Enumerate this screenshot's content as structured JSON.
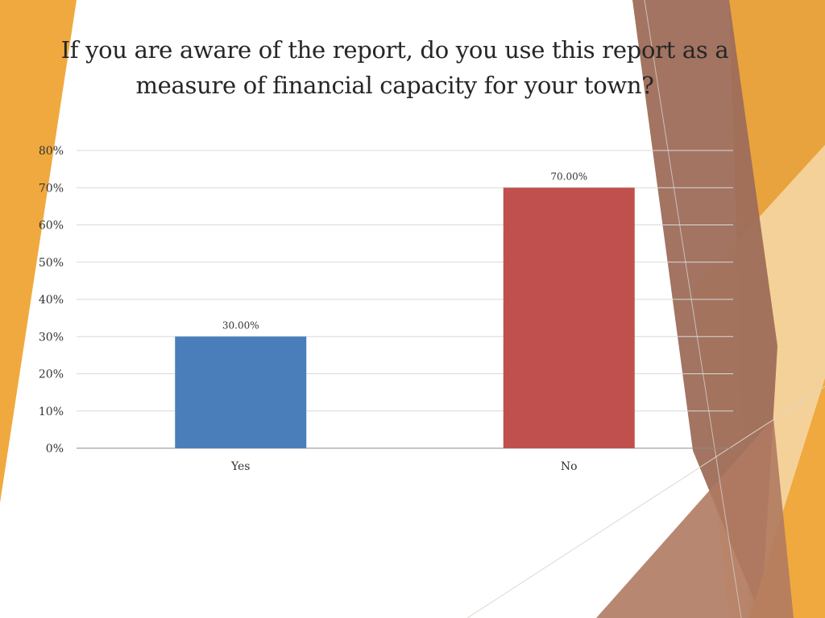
{
  "slide": {
    "title": "If you are aware of the report, do you use this report as a measure of financial capacity for your town?"
  },
  "theme": {
    "accent_orange": "#F0A93F",
    "accent_brown": "#9E6D5A",
    "accent_light": "#F6D9A8",
    "gridline": "#D9D9D9",
    "axis": "#8C8C8C"
  },
  "chart_data": {
    "type": "bar",
    "title": "If you are aware of the report, do you use this report as a measure of financial capacity for your town?",
    "categories": [
      "Yes",
      "No"
    ],
    "values": [
      30.0,
      70.0
    ],
    "data_labels": [
      "30.00%",
      "70.00%"
    ],
    "bar_colors": [
      "#4A7EBB",
      "#C0504D"
    ],
    "y_ticks": [
      "0%",
      "10%",
      "20%",
      "30%",
      "40%",
      "50%",
      "60%",
      "70%",
      "80%"
    ],
    "ylim": [
      0,
      80
    ],
    "grid": true,
    "legend": false
  }
}
